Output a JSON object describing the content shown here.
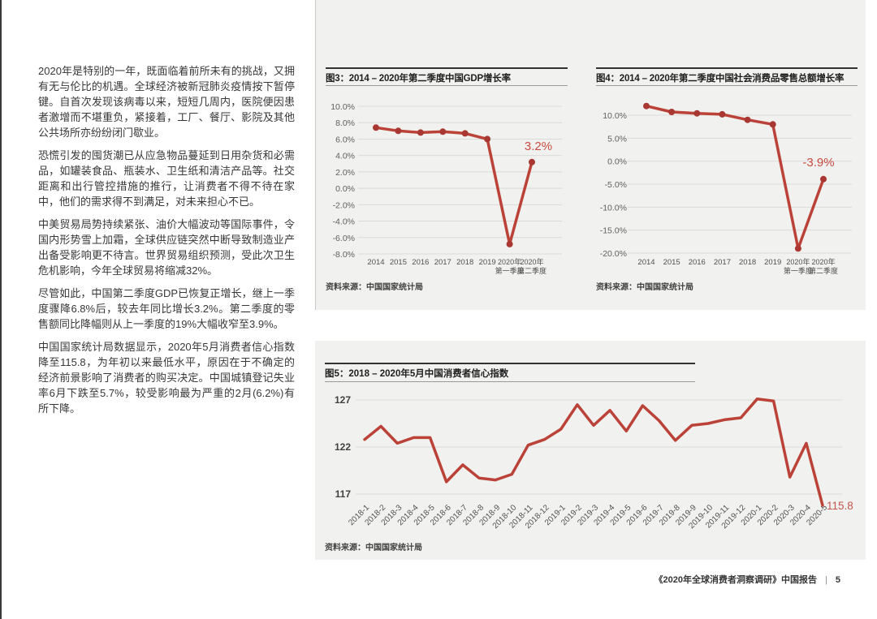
{
  "colors": {
    "line": "#bb4238",
    "marker": "#a93832",
    "grid": "#dadad8",
    "panel_bg": "#f1f1ef",
    "annotation": "#c94b40",
    "annotation_cci": "#c4574d",
    "axis_text": "#5f5f5f",
    "x_label_text": "#515151",
    "cci_tick_text": "#414141"
  },
  "article": {
    "paragraphs": [
      "2020年是特别的一年，既面临着前所未有的挑战，又拥有无与伦比的机遇。全球经济被新冠肺炎疫情按下暂停键。自首次发现该病毒以来，短短几周内，医院便因患者激增而不堪重负，紧接着，工厂、餐厅、影院及其他公共场所亦纷纷闭门歇业。",
      "恐慌引发的囤货潮已从应急物品蔓延到日用杂货和必需品，如罐装食品、瓶装水、卫生纸和清洁产品等。社交距离和出行管控措施的推行，让消费者不得不待在家中，他们的需求得不到满足，对未来担心不已。",
      "中美贸易局势持续紧张、油价大幅波动等国际事件，令国内形势雪上加霜，全球供应链突然中断导致制造业产出备受影响更不待言。世界贸易组织预测，受此次卫生危机影响，今年全球贸易将缩减32%。",
      "尽管如此，中国第二季度GDP已恢复正增长，继上一季度骤降6.8%后，较去年同比增长3.2%。第二季度的零售额同比降幅则从上一季度的19%大幅收窄至3.9%。",
      "中国国家统计局数据显示，2020年5月消费者信心指数降至115.8，为年初以来最低水平，原因在于不确定的经济前景影响了消费者的购买决定。中国城镇登记失业率6月下跌至5.7%，较受影响最为严重的2月(6.2%)有所下降。"
    ]
  },
  "chart_data": [
    {
      "id": "gdp-growth",
      "type": "line",
      "title": "图3：2014 – 2020年第二季度中国GDP增长率",
      "categories": [
        "2014",
        "2015",
        "2016",
        "2017",
        "2018",
        "2019",
        "2020年\n第一季度",
        "2020年\n第二季度"
      ],
      "values": [
        7.4,
        7.0,
        6.8,
        6.9,
        6.7,
        6.0,
        -6.8,
        3.2
      ],
      "ylim": [
        -8,
        10
      ],
      "yticks": [
        "10.0%",
        "8.0%",
        "6.0%",
        "4.0%",
        "2.0%",
        "0.0%",
        "-2.0%",
        "-4.0%",
        "-6.0%",
        "-8.0%"
      ],
      "grid": true,
      "legend": "none",
      "annotation": {
        "text": "3.2%",
        "point_index": 7
      },
      "source": "资料来源：中国国家统计局"
    },
    {
      "id": "retail-sales-growth",
      "type": "line",
      "title": "图4：2014 – 2020年第二季度中国社会消费品零售总额增长率",
      "categories": [
        "2014",
        "2015",
        "2016",
        "2017",
        "2018",
        "2019",
        "2020年\n第一季度",
        "2020年\n第二季度"
      ],
      "values": [
        12.0,
        10.7,
        10.4,
        10.2,
        9.0,
        8.0,
        -19.0,
        -3.9
      ],
      "ylim": [
        -20,
        10
      ],
      "yticks": [
        "10.0%",
        "5.0%",
        "0.0%",
        "-5.0%",
        "-10.0%",
        "-15.0%",
        "-20.0%"
      ],
      "grid": true,
      "legend": "none",
      "annotation": {
        "text": "-3.9%",
        "point_index": 7
      },
      "source": "资料来源：中国国家统计局"
    },
    {
      "id": "consumer-confidence-index",
      "type": "line",
      "title": "图5：2018 – 2020年5月中国消费者信心指数",
      "categories": [
        "2018-1",
        "2018-2",
        "2018-3",
        "2018-4",
        "2018-5",
        "2018-6",
        "2018-7",
        "2018-8",
        "2018-9",
        "2018-10",
        "2018-11",
        "2018-12",
        "2019-1",
        "2019-2",
        "2019-3",
        "2019-4",
        "2019-5",
        "2019-6",
        "2019-7",
        "2019-8",
        "2019-9",
        "2019-10",
        "2019-11",
        "2019-12",
        "2020-1",
        "2020-2",
        "2020-3",
        "2020-4",
        "2020-5"
      ],
      "values": [
        122.8,
        124.2,
        122.4,
        123.0,
        123.0,
        118.3,
        120.1,
        118.7,
        118.5,
        119.1,
        122.2,
        122.8,
        123.9,
        126.5,
        124.3,
        125.9,
        123.7,
        126.4,
        124.8,
        122.7,
        124.3,
        124.5,
        124.9,
        125.1,
        127.1,
        126.9,
        118.8,
        122.4,
        115.8
      ],
      "ylim": [
        117,
        127
      ],
      "yticks": [
        "127",
        "122",
        "117"
      ],
      "grid": true,
      "legend": "none",
      "annotation": {
        "text": "115.8",
        "point_index": 28
      },
      "source": "资料来源：中国国家统计局"
    }
  ],
  "footer": {
    "report_title": "《2020年全球消费者洞察调研》中国报告",
    "separator": "|",
    "page_number": "5"
  }
}
